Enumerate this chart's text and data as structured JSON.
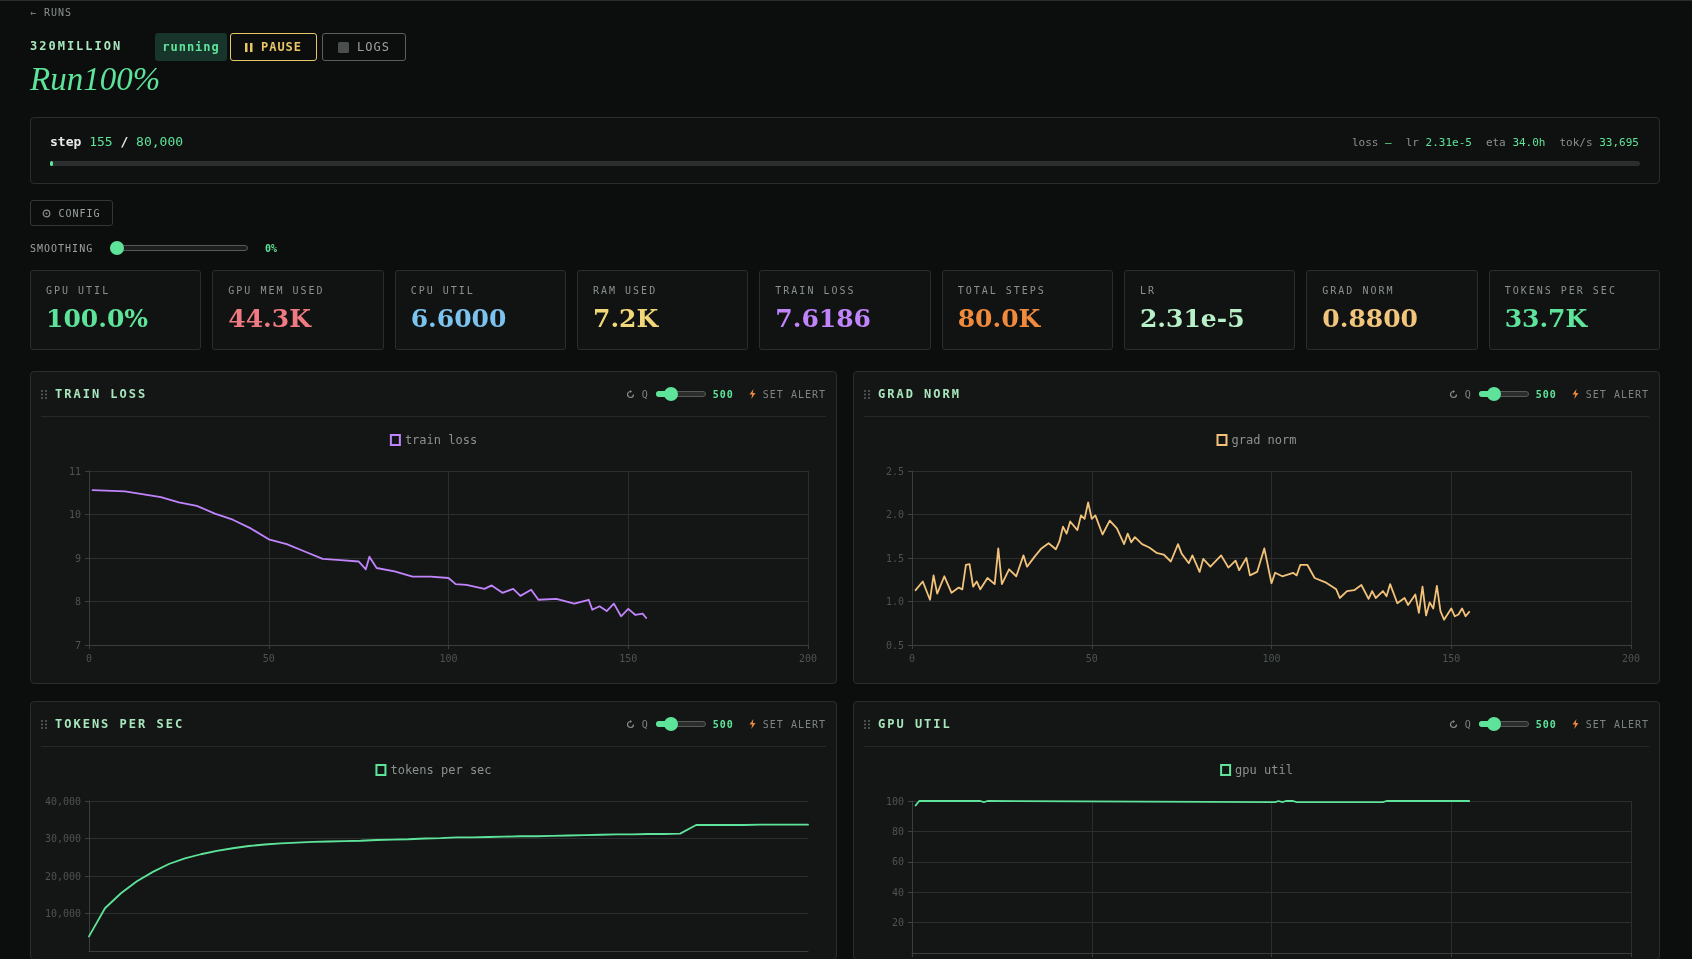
{
  "chart_data": [
    {
      "type": "other",
      "title": "Run100%",
      "subtitle": "320MILLION",
      "annotations": [
        "← RUNS",
        "running",
        "PAUSE",
        "LOGS",
        "step",
        "155",
        "/",
        "80,000",
        "loss",
        "—",
        "lr",
        "2.31e-5",
        "eta",
        "34.0h",
        "tok/s",
        "33,695",
        "CONFIG",
        "SMOOTHING",
        "0%"
      ]
    },
    {
      "type": "other",
      "annotations": [
        "GPU UTIL",
        "100.0%",
        "GPU MEM USED",
        "44.3K",
        "CPU UTIL",
        "6.6000",
        "RAM USED",
        "7.2K",
        "TRAIN LOSS",
        "7.6186",
        "TOTAL STEPS",
        "80.0K",
        "LR",
        "2.31e-5",
        "GRAD NORM",
        "0.8800",
        "TOKENS PER SEC",
        "33.7K"
      ],
      "colors": [
        "#5ee49a",
        "#f07a82",
        "#7cc4f0",
        "#f2d77a",
        "#c084fc",
        "#f08a3c",
        "#b8f0c8",
        "#f2c57c",
        "#5ee49a"
      ]
    },
    {
      "type": "line",
      "title": "TRAIN LOSS",
      "annotations": [
        "Q",
        "500",
        "SET ALERT"
      ],
      "legend": "top",
      "grid": true,
      "marker": "none",
      "line_style": "solid",
      "xlim": [
        0,
        200
      ],
      "xticks": [
        0,
        50,
        100,
        150,
        200
      ],
      "ylim": [
        7,
        11
      ],
      "yticks": [
        7,
        8,
        9,
        10,
        11
      ],
      "series": [
        {
          "name": "train loss",
          "color": "#c084fc",
          "x": [
            1,
            10,
            20,
            25,
            30,
            35,
            40,
            45,
            50,
            55,
            60,
            65,
            70,
            75,
            77,
            78,
            80,
            85,
            90,
            95,
            100,
            102,
            105,
            110,
            112,
            115,
            118,
            120,
            123,
            125,
            130,
            135,
            139,
            140,
            142,
            144,
            146,
            148,
            150,
            152,
            154,
            155
          ],
          "values": [
            10.56,
            10.53,
            10.4,
            10.28,
            10.2,
            10.02,
            9.88,
            9.68,
            9.43,
            9.32,
            9.15,
            8.98,
            8.95,
            8.92,
            8.74,
            9.03,
            8.77,
            8.69,
            8.57,
            8.57,
            8.54,
            8.4,
            8.38,
            8.29,
            8.37,
            8.2,
            8.29,
            8.13,
            8.27,
            8.04,
            8.06,
            7.95,
            8.04,
            7.81,
            7.89,
            7.78,
            7.95,
            7.66,
            7.83,
            7.69,
            7.72,
            7.62
          ]
        }
      ]
    },
    {
      "type": "line",
      "title": "GRAD NORM",
      "annotations": [
        "Q",
        "500",
        "SET ALERT"
      ],
      "legend": "top",
      "grid": true,
      "marker": "none",
      "line_style": "solid",
      "xlim": [
        0,
        200
      ],
      "xticks": [
        0,
        50,
        100,
        150,
        200
      ],
      "ylim": [
        0.5,
        2.5
      ],
      "yticks": [
        {
          "value": 0.5,
          "label": "0.5"
        },
        {
          "value": 1,
          "label": "1.0"
        },
        {
          "value": 1.5,
          "label": "1.5"
        },
        {
          "value": 2,
          "label": "2.0"
        },
        {
          "value": 2.5,
          "label": "2.5"
        }
      ],
      "series": [
        {
          "name": "grad norm",
          "color": "#f2c27a",
          "x": [
            1,
            3,
            5,
            6,
            7,
            9,
            11,
            13,
            14,
            15,
            16,
            17,
            18,
            19,
            21,
            23,
            24,
            25,
            27,
            29,
            31,
            32,
            34,
            36,
            38,
            40,
            41,
            42,
            43,
            44,
            46,
            47,
            48,
            49,
            50,
            51,
            53,
            55,
            57,
            59,
            60,
            61,
            62,
            64,
            66,
            68,
            70,
            72,
            74,
            75,
            77,
            78,
            80,
            81,
            83,
            86,
            88,
            90,
            91,
            93,
            94,
            96,
            98,
            100,
            101,
            103,
            106,
            107,
            108,
            110,
            112,
            115,
            118,
            119,
            121,
            123,
            125,
            127,
            128,
            129,
            131,
            132,
            133,
            135,
            137,
            138,
            140,
            141,
            142,
            143,
            144,
            145,
            146,
            147,
            148,
            150,
            151,
            152,
            153,
            154,
            155
          ],
          "values": [
            1.13,
            1.23,
            1.02,
            1.3,
            1.09,
            1.29,
            1.1,
            1.16,
            1.14,
            1.42,
            1.43,
            1.17,
            1.23,
            1.14,
            1.27,
            1.2,
            1.61,
            1.2,
            1.37,
            1.29,
            1.53,
            1.4,
            1.51,
            1.61,
            1.67,
            1.6,
            1.69,
            1.86,
            1.78,
            1.92,
            1.82,
            1.99,
            1.95,
            2.14,
            1.95,
            1.99,
            1.77,
            1.93,
            1.84,
            1.66,
            1.78,
            1.68,
            1.74,
            1.66,
            1.62,
            1.56,
            1.54,
            1.46,
            1.66,
            1.55,
            1.44,
            1.53,
            1.34,
            1.49,
            1.4,
            1.53,
            1.39,
            1.47,
            1.36,
            1.5,
            1.3,
            1.34,
            1.61,
            1.21,
            1.33,
            1.29,
            1.33,
            1.3,
            1.42,
            1.42,
            1.27,
            1.22,
            1.14,
            1.04,
            1.12,
            1.13,
            1.19,
            1.03,
            1.12,
            1.04,
            1.12,
            1.06,
            1.2,
            0.98,
            1.04,
            0.96,
            1.08,
            0.87,
            1.17,
            0.84,
            0.99,
            0.92,
            1.18,
            0.89,
            0.79,
            0.92,
            0.83,
            0.85,
            0.92,
            0.83,
            0.88
          ]
        }
      ]
    },
    {
      "type": "line",
      "title": "TOKENS PER SEC",
      "annotations": [
        "Q",
        "500",
        "SET ALERT"
      ],
      "legend": "top",
      "grid": "y",
      "marker": "none",
      "line_style": "solid",
      "categories": [
        null,
        null,
        null,
        null,
        null,
        null,
        null,
        null,
        null,
        null,
        null,
        null,
        null,
        null,
        null,
        null,
        null,
        null,
        null,
        null,
        null,
        null,
        null,
        null,
        null,
        null,
        null,
        null,
        null,
        null,
        null,
        null,
        null,
        null,
        null,
        null,
        null,
        null,
        null,
        null,
        null,
        null,
        null,
        null,
        null,
        null
      ],
      "ylim": [
        0,
        40000
      ],
      "yticks": [
        {
          "value": 10000,
          "label": "10,000"
        },
        {
          "value": 20000,
          "label": "20,000"
        },
        {
          "value": 30000,
          "label": "30,000"
        },
        {
          "value": 40000,
          "label": "40,000"
        }
      ],
      "series": [
        {
          "name": "tokens per sec",
          "color": "#5ee49a",
          "values": [
            3900,
            11400,
            15400,
            18600,
            21100,
            23200,
            24700,
            25800,
            26700,
            27400,
            28000,
            28400,
            28700,
            28900,
            29100,
            29200,
            29300,
            29400,
            29600,
            29700,
            29800,
            30000,
            30100,
            30300,
            30300,
            30400,
            30500,
            30600,
            30600,
            30700,
            30800,
            30900,
            31000,
            31100,
            31100,
            31200,
            31200,
            31300,
            33600,
            33600,
            33600,
            33600,
            33700,
            33700,
            33700,
            33700
          ]
        }
      ]
    },
    {
      "type": "line",
      "title": "GPU UTIL",
      "annotations": [
        "Q",
        "500",
        "SET ALERT"
      ],
      "legend": "top",
      "grid": true,
      "marker": "none",
      "line_style": "solid",
      "tick_labels": "y",
      "xlim": [
        0,
        200
      ],
      "xticks": [
        {
          "value": 0,
          "label": null
        },
        {
          "value": 50,
          "label": null
        },
        {
          "value": 100,
          "label": null
        },
        {
          "value": 150,
          "label": null
        },
        {
          "value": 200,
          "label": null
        }
      ],
      "ylim": [
        0,
        100
      ],
      "yticks": [
        20,
        40,
        60,
        80,
        100
      ],
      "series": [
        {
          "name": "gpu util",
          "color": "#5ee49a",
          "x": [
            1,
            2,
            19,
            20,
            21,
            101,
            102,
            103,
            104,
            105,
            106,
            107,
            131,
            132,
            133,
            155
          ],
          "values": [
            97,
            100,
            100,
            99.3,
            100,
            99.3,
            100,
            99.3,
            100,
            100,
            100,
            99.3,
            99.3,
            100,
            100,
            100
          ]
        }
      ]
    }
  ]
}
